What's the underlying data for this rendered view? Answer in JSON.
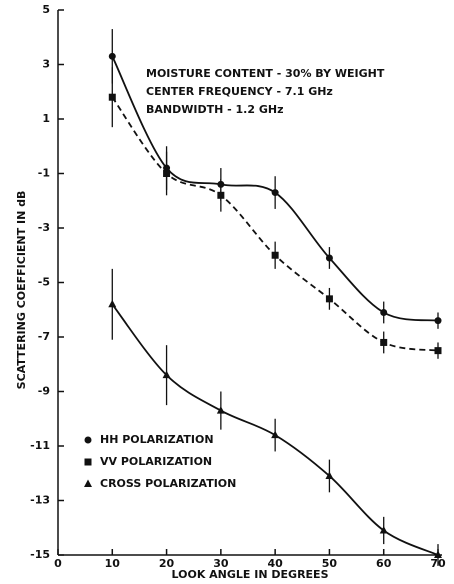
{
  "chart_data": {
    "type": "line",
    "xlabel": "LOOK ANGLE IN DEGREES",
    "ylabel": "SCATTERING COEFFICIENT IN dB",
    "annotations": [
      "MOISTURE CONTENT - 30% BY WEIGHT",
      "CENTER FREQUENCY - 7.1 GHz",
      "BANDWIDTH - 1.2 GHz"
    ],
    "x": [
      10,
      20,
      30,
      40,
      50,
      60,
      70
    ],
    "series": [
      {
        "name": "HH POLARIZATION",
        "color": "#111111",
        "marker": "circle",
        "dash": false,
        "values": [
          3.3,
          -0.8,
          -1.4,
          -1.7,
          -4.1,
          -6.1,
          -6.4
        ],
        "errors": [
          1.0,
          0.8,
          0.6,
          0.6,
          0.4,
          0.4,
          0.3
        ]
      },
      {
        "name": "VV POLARIZATION",
        "color": "#111111",
        "marker": "square",
        "dash": true,
        "values": [
          1.8,
          -1.0,
          -1.8,
          -4.0,
          -5.6,
          -7.2,
          -7.5
        ],
        "errors": [
          1.1,
          0.8,
          0.6,
          0.5,
          0.4,
          0.4,
          0.3
        ]
      },
      {
        "name": "CROSS POLARIZATION",
        "color": "#111111",
        "marker": "triangle",
        "dash": false,
        "values": [
          -5.8,
          -8.4,
          -9.7,
          -10.6,
          -12.1,
          -14.1,
          -15.0
        ],
        "errors": [
          1.3,
          1.1,
          0.7,
          0.6,
          0.6,
          0.5,
          0.4
        ]
      }
    ],
    "xlim": [
      0,
      70
    ],
    "xticks": [
      0,
      10,
      20,
      30,
      40,
      50,
      60,
      70
    ],
    "ylim": [
      -15,
      5
    ],
    "yticks": [
      -15,
      -13,
      -11,
      -9,
      -7,
      -5,
      -3,
      -1,
      1,
      3,
      5
    ],
    "legend": "lower left",
    "grid": false
  }
}
